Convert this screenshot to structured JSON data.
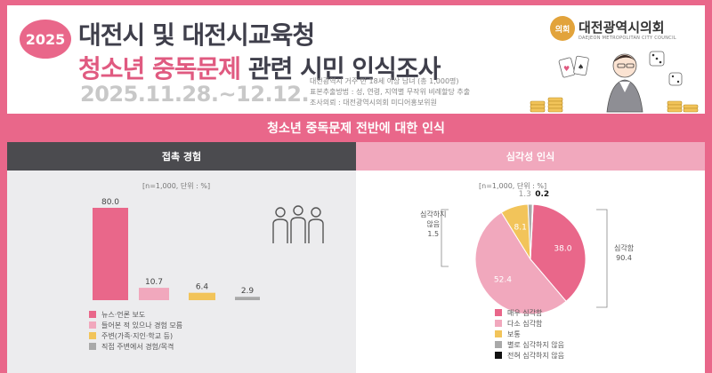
{
  "header": {
    "year_badge": "2025",
    "title_line1": "대전시 및 대전시교육청",
    "title_highlight": "청소년 중독문제",
    "title_rest": " 관련 시민 인식조사",
    "date_range": "2025.11.28.~12.12.",
    "survey_info": [
      "대전광역시 거주 만 18세 이상 남녀 (총 1,000명)",
      "표본추출방법 : 성, 연령, 지역별 무작위 비례할당 추출",
      "조사의뢰 : 대전광역시의회 미디어홍보위원"
    ],
    "council_logo_text": "의회",
    "council_name": "대전광역시의회",
    "council_eng": "DAEJEON METROPOLITAN CITY COUNCIL"
  },
  "section": {
    "title": "청소년 중독문제 전반에 대한 인식"
  },
  "left_panel": {
    "title": "접촉 경험",
    "unit": "[n=1,000, 단위 : %]",
    "icon": "people-group-icon",
    "legend": [
      {
        "label": "뉴스·언론 보도",
        "color": "#e9678a"
      },
      {
        "label": "들어본 적 있으나 경험 모름",
        "color": "#f1a8bd"
      },
      {
        "label": "주변(가족·지인·학교 등)",
        "color": "#f2c45a"
      },
      {
        "label": "직접 주변에서 경험/목격",
        "color": "#a9a9a9"
      }
    ]
  },
  "right_panel": {
    "title": "심각성 인식",
    "unit": "[n=1,000, 단위 : %]",
    "left_label": [
      "심각하지",
      "않음",
      "1.5"
    ],
    "right_label": [
      "심각함",
      "90.4"
    ],
    "legend": [
      {
        "label": "매우 심각함",
        "color": "#e9678a"
      },
      {
        "label": "다소 심각함",
        "color": "#f1a8bd"
      },
      {
        "label": "보통",
        "color": "#f2c45a"
      },
      {
        "label": "별로 심각하지 않음",
        "color": "#a9a9a9"
      },
      {
        "label": "전혀 심각하지 않음",
        "color": "#111111"
      }
    ]
  },
  "chart_data": [
    {
      "type": "bar",
      "title": "접촉 경험",
      "categories": [
        "뉴스·언론 보도",
        "들어본 적 있으나 경험 모름",
        "주변(가족·지인·학교 등)",
        "직접 주변에서 경험/목격"
      ],
      "values": [
        80.0,
        10.7,
        6.4,
        2.9
      ],
      "value_labels": [
        "80.0",
        "10.7",
        "6.4",
        "2.9"
      ],
      "colors": [
        "#e9678a",
        "#f1a8bd",
        "#f2c45a",
        "#a9a9a9"
      ],
      "ylim": [
        0,
        100
      ]
    },
    {
      "type": "pie",
      "title": "심각성 인식",
      "categories": [
        "매우 심각함",
        "다소 심각함",
        "보통",
        "별로 심각하지 않음",
        "전혀 심각하지 않음"
      ],
      "values": [
        38.0,
        52.4,
        8.1,
        1.3,
        0.2
      ],
      "value_labels": [
        "38.0",
        "52.4",
        "8.1",
        "1.3",
        "0.2"
      ],
      "colors": [
        "#e9678a",
        "#f1a8bd",
        "#f2c45a",
        "#a9a9a9",
        "#111111"
      ]
    }
  ]
}
